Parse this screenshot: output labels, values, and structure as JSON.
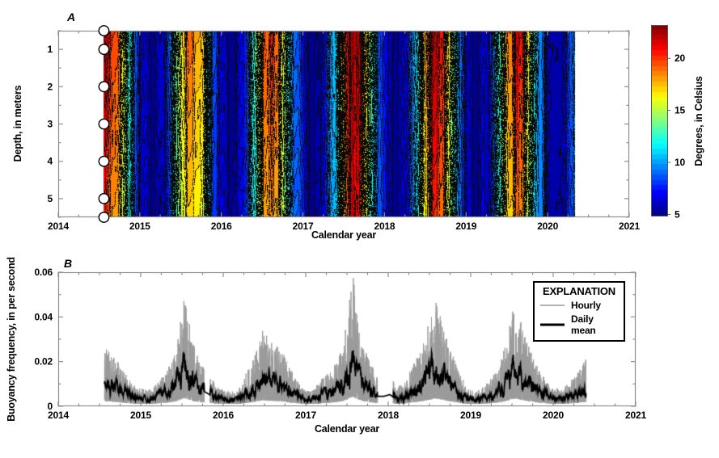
{
  "chart_data": [
    {
      "type": "heatmap",
      "panel_label": "A",
      "xlabel": "Calendar year",
      "ylabel": "Depth, in meters",
      "xlim": [
        2014,
        2021
      ],
      "xticks": [
        2014,
        2015,
        2016,
        2017,
        2018,
        2019,
        2020,
        2021
      ],
      "x_minor_step": 0.25,
      "depth_lim_m": [
        0.5,
        5.5
      ],
      "depth_ticks": [
        1,
        2,
        3,
        4,
        5
      ],
      "depth_minor_step": 0.5,
      "data_time_range": [
        2014.56,
        2020.33
      ],
      "sensor_depths_m": [
        0.5,
        1,
        2,
        3,
        4,
        5,
        5.5
      ],
      "colorbar": {
        "label": "Degrees, in Celsius",
        "ticks": [
          5,
          10,
          15,
          20
        ],
        "min_c": 4.8,
        "max_c": 23.2,
        "colormap": "jet"
      },
      "contour_interval_c": 0.5,
      "stratification_factor": 0.12,
      "noise_amp_c": 1.1,
      "seed": 20147,
      "surface_temperature_keypoints": [
        [
          2014.56,
          21.8
        ],
        [
          2014.6,
          20.5
        ],
        [
          2014.66,
          19.5
        ],
        [
          2014.72,
          18.5
        ],
        [
          2014.78,
          16.0
        ],
        [
          2014.84,
          13.0
        ],
        [
          2014.9,
          10.5
        ],
        [
          2014.97,
          8.0
        ],
        [
          2015.05,
          6.2
        ],
        [
          2015.15,
          5.2
        ],
        [
          2015.25,
          5.8
        ],
        [
          2015.33,
          8.0
        ],
        [
          2015.4,
          11.5
        ],
        [
          2015.47,
          15.5
        ],
        [
          2015.52,
          17.5
        ],
        [
          2015.58,
          18.8
        ],
        [
          2015.65,
          19.2
        ],
        [
          2015.72,
          18.0
        ],
        [
          2015.78,
          15.5
        ],
        [
          2015.83,
          11.5
        ],
        [
          2015.9,
          9.0
        ],
        [
          2015.97,
          7.0
        ],
        [
          2016.05,
          5.5
        ],
        [
          2016.15,
          5.2
        ],
        [
          2016.25,
          6.5
        ],
        [
          2016.33,
          9.0
        ],
        [
          2016.42,
          13.5
        ],
        [
          2016.5,
          18.5
        ],
        [
          2016.55,
          20.5
        ],
        [
          2016.62,
          20.8
        ],
        [
          2016.68,
          19.0
        ],
        [
          2016.75,
          16.0
        ],
        [
          2016.82,
          12.0
        ],
        [
          2016.9,
          9.0
        ],
        [
          2016.98,
          6.5
        ],
        [
          2017.08,
          5.3
        ],
        [
          2017.18,
          5.8
        ],
        [
          2017.28,
          7.5
        ],
        [
          2017.38,
          11.0
        ],
        [
          2017.46,
          16.0
        ],
        [
          2017.52,
          20.0
        ],
        [
          2017.58,
          22.5
        ],
        [
          2017.65,
          22.0
        ],
        [
          2017.72,
          19.5
        ],
        [
          2017.8,
          15.0
        ],
        [
          2017.88,
          11.0
        ],
        [
          2017.96,
          8.0
        ],
        [
          2018.05,
          6.0
        ],
        [
          2018.15,
          5.4
        ],
        [
          2018.25,
          6.5
        ],
        [
          2018.35,
          9.5
        ],
        [
          2018.44,
          14.5
        ],
        [
          2018.52,
          19.5
        ],
        [
          2018.58,
          22.3
        ],
        [
          2018.65,
          22.0
        ],
        [
          2018.72,
          19.5
        ],
        [
          2018.8,
          15.0
        ],
        [
          2018.88,
          11.0
        ],
        [
          2018.96,
          8.0
        ],
        [
          2019.05,
          6.0
        ],
        [
          2019.15,
          5.3
        ],
        [
          2019.25,
          6.8
        ],
        [
          2019.35,
          9.5
        ],
        [
          2019.45,
          14.0
        ],
        [
          2019.53,
          19.0
        ],
        [
          2019.6,
          21.3
        ],
        [
          2019.68,
          20.0
        ],
        [
          2019.75,
          17.0
        ],
        [
          2019.82,
          13.0
        ],
        [
          2019.9,
          9.5
        ],
        [
          2019.98,
          7.0
        ],
        [
          2020.08,
          5.5
        ],
        [
          2020.16,
          5.8
        ],
        [
          2020.24,
          7.5
        ],
        [
          2020.3,
          9.0
        ],
        [
          2020.33,
          10.0
        ]
      ]
    },
    {
      "type": "line",
      "panel_label": "B",
      "xlabel": "Calendar year",
      "ylabel": "Buoyancy frequency, in per second",
      "xlim": [
        2014,
        2021
      ],
      "ylim": [
        0,
        0.06
      ],
      "xticks": [
        2014,
        2015,
        2016,
        2017,
        2018,
        2019,
        2020,
        2021
      ],
      "x_minor_step": 0.25,
      "yticks": [
        0,
        0.02,
        0.04,
        0.06
      ],
      "ytick_labels": [
        "0",
        "0.02",
        "0.04",
        "0.06"
      ],
      "y_minor_step": 0.01,
      "data_time_range": [
        2014.56,
        2020.4
      ],
      "legend": {
        "title": "EXPLANATION",
        "entries": [
          {
            "label": "Hourly",
            "color": "#9a9a9a",
            "line_width": 1.6
          },
          {
            "label": "Daily mean",
            "color": "#000000",
            "line_width": 3
          }
        ]
      },
      "hourly_peak_factor": 1.85,
      "hourly_gaps": [
        [
          2015.77,
          2015.84
        ],
        [
          2017.87,
          2018.06
        ]
      ],
      "seed": 4223,
      "daily_mean_keypoints": [
        [
          2014.56,
          0.013
        ],
        [
          2014.65,
          0.012
        ],
        [
          2014.75,
          0.009
        ],
        [
          2014.85,
          0.006
        ],
        [
          2014.95,
          0.004
        ],
        [
          2015.05,
          0.0035
        ],
        [
          2015.15,
          0.004
        ],
        [
          2015.25,
          0.006
        ],
        [
          2015.35,
          0.009
        ],
        [
          2015.45,
          0.015
        ],
        [
          2015.52,
          0.024
        ],
        [
          2015.58,
          0.02
        ],
        [
          2015.65,
          0.013
        ],
        [
          2015.72,
          0.01
        ],
        [
          2015.8,
          0.008
        ],
        [
          2015.9,
          0.005
        ],
        [
          2016.0,
          0.0035
        ],
        [
          2016.1,
          0.003
        ],
        [
          2016.2,
          0.004
        ],
        [
          2016.3,
          0.008
        ],
        [
          2016.4,
          0.012
        ],
        [
          2016.48,
          0.017
        ],
        [
          2016.55,
          0.015
        ],
        [
          2016.65,
          0.014
        ],
        [
          2016.75,
          0.011
        ],
        [
          2016.85,
          0.007
        ],
        [
          2016.95,
          0.004
        ],
        [
          2017.05,
          0.003
        ],
        [
          2017.15,
          0.005
        ],
        [
          2017.25,
          0.007
        ],
        [
          2017.35,
          0.009
        ],
        [
          2017.45,
          0.014
        ],
        [
          2017.52,
          0.022
        ],
        [
          2017.57,
          0.03
        ],
        [
          2017.62,
          0.022
        ],
        [
          2017.7,
          0.014
        ],
        [
          2017.78,
          0.01
        ],
        [
          2017.87,
          0.006
        ],
        [
          2017.95,
          0.006
        ],
        [
          2018.02,
          0.007
        ],
        [
          2018.1,
          0.004
        ],
        [
          2018.2,
          0.005
        ],
        [
          2018.3,
          0.009
        ],
        [
          2018.4,
          0.013
        ],
        [
          2018.5,
          0.019
        ],
        [
          2018.58,
          0.024
        ],
        [
          2018.65,
          0.019
        ],
        [
          2018.75,
          0.013
        ],
        [
          2018.85,
          0.008
        ],
        [
          2018.95,
          0.004
        ],
        [
          2019.05,
          0.003
        ],
        [
          2019.15,
          0.004
        ],
        [
          2019.25,
          0.006
        ],
        [
          2019.35,
          0.009
        ],
        [
          2019.45,
          0.016
        ],
        [
          2019.52,
          0.023
        ],
        [
          2019.58,
          0.021
        ],
        [
          2019.65,
          0.016
        ],
        [
          2019.72,
          0.013
        ],
        [
          2019.8,
          0.009
        ],
        [
          2019.9,
          0.006
        ],
        [
          2020.0,
          0.004
        ],
        [
          2020.1,
          0.0035
        ],
        [
          2020.2,
          0.005
        ],
        [
          2020.3,
          0.008
        ],
        [
          2020.4,
          0.011
        ]
      ]
    }
  ]
}
